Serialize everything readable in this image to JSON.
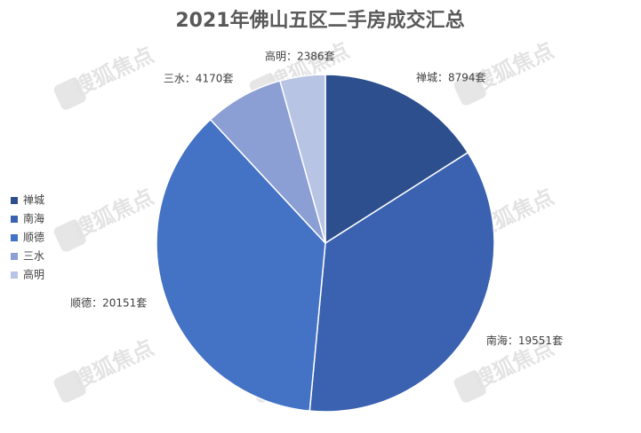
{
  "chart_data": {
    "type": "pie",
    "title": "2021年佛山五区二手房成交汇总",
    "categories": [
      "禅城",
      "南海",
      "顺德",
      "三水",
      "高明"
    ],
    "values": [
      8794,
      19551,
      20151,
      4170,
      2386
    ],
    "value_labels": [
      "禅城：8794套",
      "南海：19551套",
      "顺德：20151套",
      "三水：4170套",
      "高明：2386套"
    ],
    "colors": [
      "#2e4f8e",
      "#3a62b0",
      "#4472c4",
      "#8b9fd5",
      "#b8c4e4"
    ],
    "legend": "left",
    "watermark": "搜狐焦点"
  }
}
